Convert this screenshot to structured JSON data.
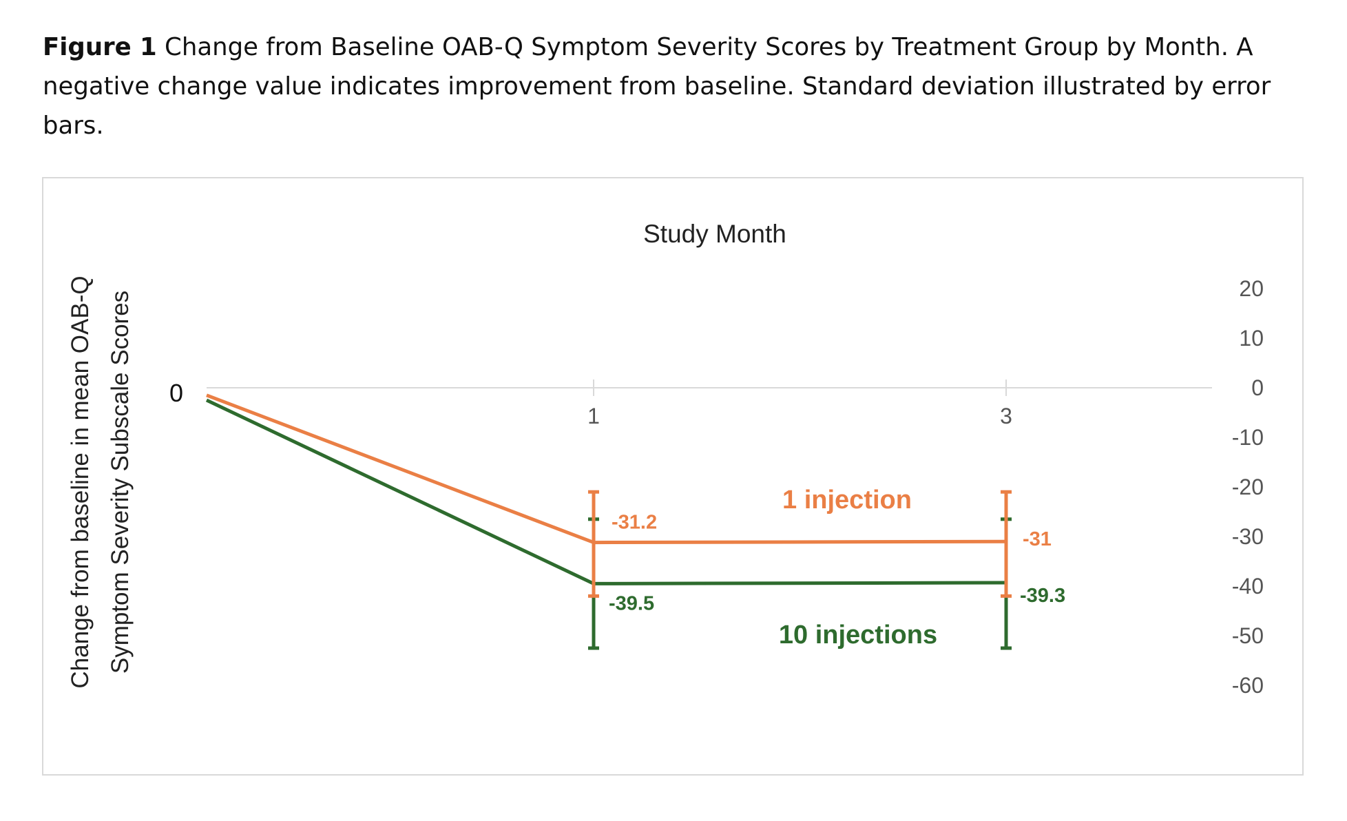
{
  "caption": {
    "label": "Figure 1",
    "text": "Change from Baseline OAB-Q Symptom Severity Scores by Treatment Group by Month. A negative change value indicates improvement from baseline. Standard deviation illustrated by error bars."
  },
  "colors": {
    "one_injection": "#ea7f45",
    "ten_injections": "#2e6b2e",
    "axis": "#d9d9d9",
    "tick_text": "#555555",
    "title_text": "#222222"
  },
  "chart_data": {
    "type": "line",
    "title": "Study Month",
    "xlabel": "",
    "ylabel": "Change from baseline in mean OAB-Q Symptom Severity Subscale Scores",
    "ylabel_lines": [
      "Change from baseline in mean OAB-Q",
      "Symptom Severity Subscale Scores"
    ],
    "x_categories": [
      "0",
      "1",
      "3"
    ],
    "y_axis_position": "right",
    "ylim": [
      -60,
      20
    ],
    "y_ticks": [
      20,
      10,
      0,
      -10,
      -20,
      -30,
      -40,
      -50,
      -60
    ],
    "grid": false,
    "series": [
      {
        "name": "1 injection",
        "color": "#ea7f45",
        "x": [
          "0",
          "1",
          "3"
        ],
        "values": [
          -1.5,
          -31.2,
          -31
        ],
        "error_low": [
          null,
          -42,
          -42
        ],
        "error_high": [
          null,
          -21,
          -21
        ],
        "data_labels": [
          "",
          "-31.2",
          "-31"
        ]
      },
      {
        "name": "10 injections",
        "color": "#2e6b2e",
        "x": [
          "0",
          "1",
          "3"
        ],
        "values": [
          -2.5,
          -39.5,
          -39.3
        ],
        "error_low": [
          null,
          -52.5,
          -52.5
        ],
        "error_high": [
          null,
          -26.5,
          -26.5
        ],
        "data_labels": [
          "",
          "-39.5",
          "-39.3"
        ]
      }
    ]
  }
}
